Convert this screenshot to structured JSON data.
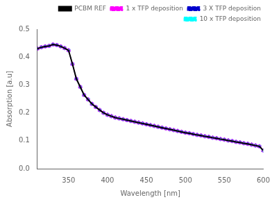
{
  "chart_data": {
    "type": "line",
    "xlabel": "Wavelength [nm]",
    "ylabel": "Absorption [a.u]",
    "xlim": [
      310,
      600
    ],
    "ylim": [
      0.0,
      0.5
    ],
    "xticks": [
      350,
      400,
      450,
      500,
      550,
      600
    ],
    "yticks": [
      {
        "value": 0.0,
        "label": "0.0"
      },
      0.1,
      0.2,
      0.3,
      0.4,
      0.5
    ],
    "grid": false,
    "legend": "upper right",
    "x": [
      310,
      315,
      320,
      325,
      330,
      335,
      340,
      345,
      350,
      355,
      360,
      365,
      370,
      375,
      380,
      385,
      390,
      395,
      400,
      405,
      410,
      415,
      420,
      425,
      430,
      435,
      440,
      445,
      450,
      455,
      460,
      465,
      470,
      475,
      480,
      485,
      490,
      495,
      500,
      505,
      510,
      515,
      520,
      525,
      530,
      535,
      540,
      545,
      550,
      555,
      560,
      565,
      570,
      575,
      580,
      585,
      590,
      595,
      600
    ],
    "series": [
      {
        "name": "PCBM REF",
        "color": "#000000",
        "line_style": "solid",
        "marker": "none",
        "values": [
          0.43,
          0.435,
          0.438,
          0.44,
          0.445,
          0.443,
          0.438,
          0.432,
          0.424,
          0.375,
          0.322,
          0.293,
          0.264,
          0.248,
          0.232,
          0.221,
          0.21,
          0.2,
          0.193,
          0.188,
          0.183,
          0.18,
          0.177,
          0.174,
          0.171,
          0.168,
          0.165,
          0.162,
          0.159,
          0.156,
          0.153,
          0.15,
          0.147,
          0.144,
          0.141,
          0.138,
          0.135,
          0.132,
          0.129,
          0.127,
          0.124,
          0.121,
          0.119,
          0.116,
          0.114,
          0.111,
          0.109,
          0.106,
          0.104,
          0.101,
          0.099,
          0.096,
          0.094,
          0.091,
          0.089,
          0.086,
          0.083,
          0.08,
          0.065
        ]
      },
      {
        "name": "1 x TFP deposition",
        "color": "#ff00ff",
        "line_style": "dashed",
        "marker": "o",
        "values": [
          0.43,
          0.435,
          0.438,
          0.44,
          0.445,
          0.443,
          0.438,
          0.432,
          0.424,
          0.375,
          0.322,
          0.293,
          0.264,
          0.248,
          0.232,
          0.221,
          0.21,
          0.2,
          0.193,
          0.188,
          0.183,
          0.18,
          0.177,
          0.174,
          0.171,
          0.168,
          0.165,
          0.162,
          0.159,
          0.156,
          0.153,
          0.15,
          0.147,
          0.144,
          0.141,
          0.138,
          0.135,
          0.132,
          0.129,
          0.127,
          0.124,
          0.121,
          0.119,
          0.116,
          0.114,
          0.111,
          0.109,
          0.106,
          0.104,
          0.101,
          0.099,
          0.096,
          0.094,
          0.091,
          0.089,
          0.086,
          0.083,
          0.08,
          0.065
        ]
      },
      {
        "name": "3 X TFP deposition",
        "color": "#0000cd",
        "line_style": "dashed",
        "marker": "^",
        "values": [
          0.43,
          0.435,
          0.438,
          0.44,
          0.445,
          0.443,
          0.438,
          0.432,
          0.424,
          0.375,
          0.322,
          0.293,
          0.264,
          0.248,
          0.232,
          0.221,
          0.21,
          0.2,
          0.193,
          0.188,
          0.183,
          0.18,
          0.177,
          0.174,
          0.171,
          0.168,
          0.165,
          0.162,
          0.159,
          0.156,
          0.153,
          0.15,
          0.147,
          0.144,
          0.141,
          0.138,
          0.135,
          0.132,
          0.129,
          0.127,
          0.124,
          0.121,
          0.119,
          0.116,
          0.114,
          0.111,
          0.109,
          0.106,
          0.104,
          0.101,
          0.099,
          0.096,
          0.094,
          0.091,
          0.089,
          0.086,
          0.083,
          0.08,
          0.065
        ]
      },
      {
        "name": "10 x TFP deposition",
        "color": "#00ffff",
        "line_style": "dashed",
        "marker": "v",
        "values": [
          0.43,
          0.435,
          0.438,
          0.44,
          0.445,
          0.443,
          0.438,
          0.432,
          0.424,
          0.375,
          0.322,
          0.293,
          0.264,
          0.248,
          0.232,
          0.221,
          0.21,
          0.2,
          0.193,
          0.188,
          0.183,
          0.18,
          0.177,
          0.174,
          0.171,
          0.168,
          0.165,
          0.162,
          0.159,
          0.156,
          0.153,
          0.15,
          0.147,
          0.144,
          0.141,
          0.138,
          0.135,
          0.132,
          0.129,
          0.127,
          0.124,
          0.121,
          0.119,
          0.116,
          0.114,
          0.111,
          0.109,
          0.106,
          0.104,
          0.101,
          0.099,
          0.096,
          0.094,
          0.091,
          0.089,
          0.086,
          0.083,
          0.08,
          0.065
        ]
      }
    ]
  }
}
